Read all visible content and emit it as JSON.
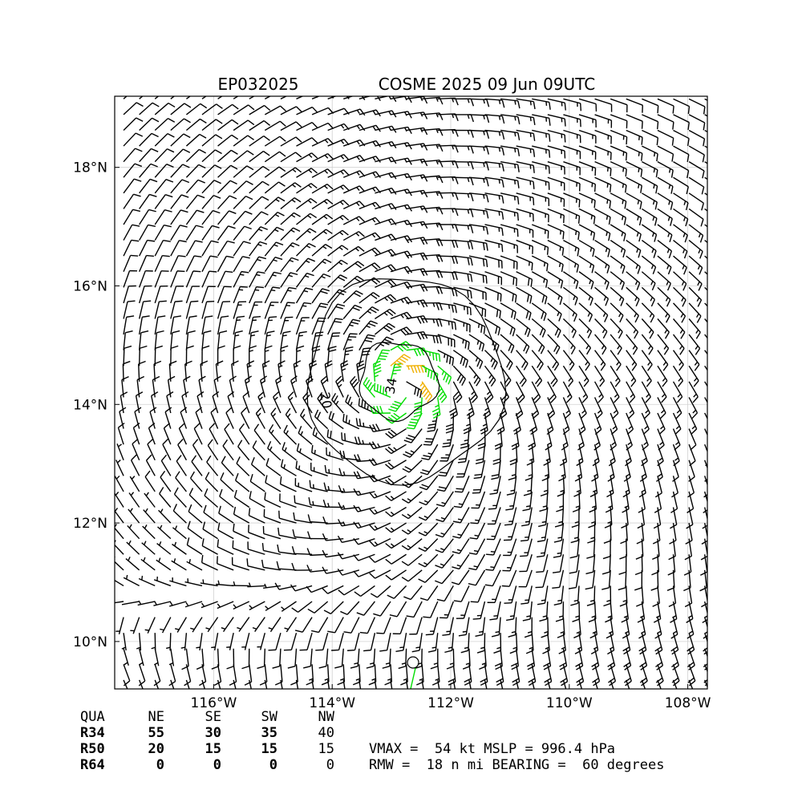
{
  "header": {
    "storm_id": "EP032025",
    "title": "COSME 2025 09 Jun 09UTC"
  },
  "chart_data": {
    "type": "wind_barb_map",
    "x_ticks": [
      {
        "value": -116,
        "label": "116°W"
      },
      {
        "value": -114,
        "label": "114°W"
      },
      {
        "value": -112,
        "label": "112°W"
      },
      {
        "value": -110,
        "label": "110°W"
      },
      {
        "value": -108,
        "label": "108°W"
      }
    ],
    "y_ticks": [
      {
        "value": 10,
        "label": "10°N"
      },
      {
        "value": 12,
        "label": "12°N"
      },
      {
        "value": 14,
        "label": "14°N"
      },
      {
        "value": 16,
        "label": "16°N"
      },
      {
        "value": 18,
        "label": "18°N"
      }
    ],
    "xlim": [
      -117.67,
      -107.67
    ],
    "ylim": [
      9.2,
      19.2
    ],
    "grid": true,
    "center": {
      "lon": -112.85,
      "lat": 14.3
    },
    "barb_thresholds": {
      "green_kt": 34,
      "orange_kt": 50
    },
    "contours": [
      {
        "label": "20",
        "value": 20,
        "color": "#000000"
      },
      {
        "label": "34",
        "value": 34,
        "color": "#000000"
      }
    ],
    "barb_colors": {
      "default": "#000000",
      "tropical_storm": "#00dd00",
      "strong": "#f0b000"
    },
    "table": {
      "columns": [
        "QUA",
        "NE",
        "SE",
        "SW",
        "NW"
      ],
      "rows": [
        {
          "label": "R34",
          "values": [
            "55",
            "30",
            "35",
            "40"
          ]
        },
        {
          "label": "R50",
          "values": [
            "20",
            "15",
            "15",
            "15"
          ]
        },
        {
          "label": "R64",
          "values": [
            "0",
            "0",
            "0",
            "0"
          ]
        }
      ]
    },
    "summary": {
      "line1": "VMAX =  54 kt MSLP = 996.4 hPa",
      "line2": "RMW =  18 n mi BEARING =  60 degrees"
    }
  }
}
